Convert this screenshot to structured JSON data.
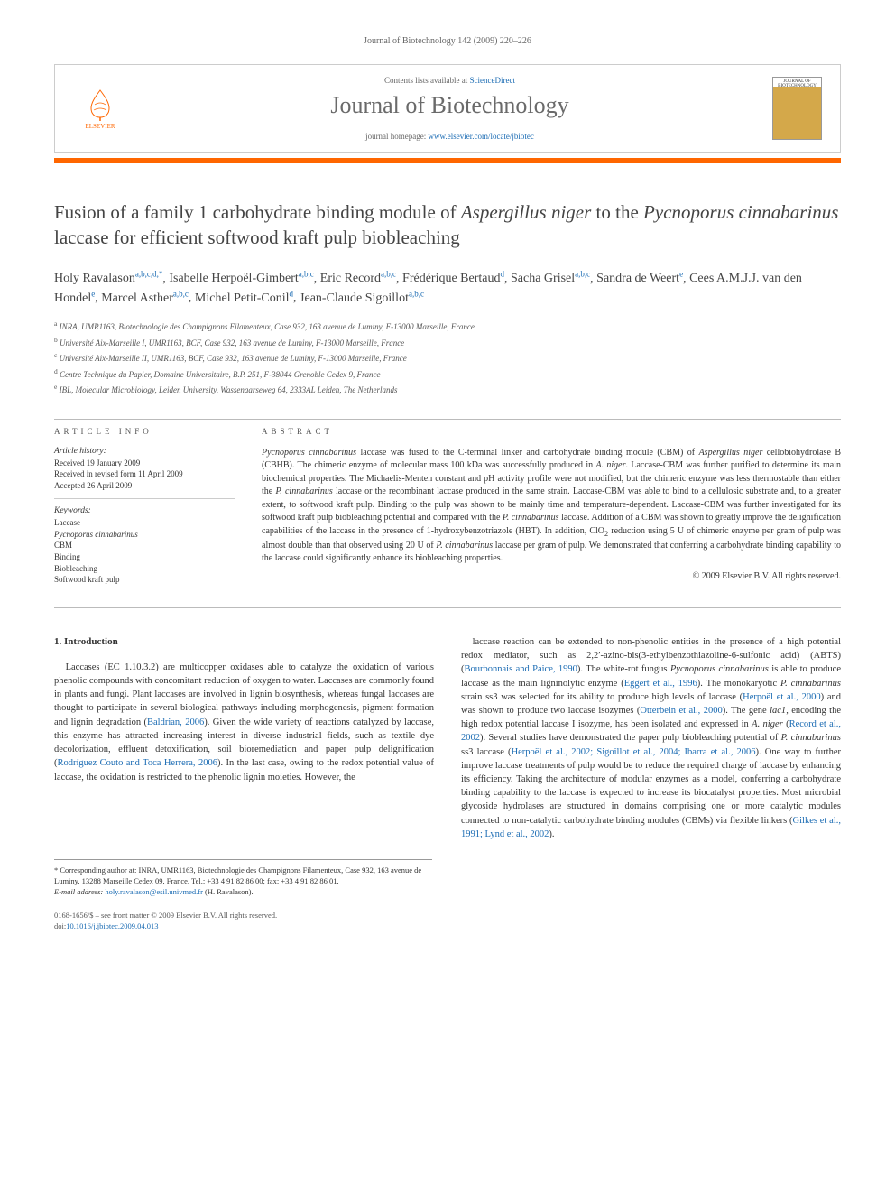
{
  "running_head": "Journal of Biotechnology 142 (2009) 220–226",
  "header": {
    "contents_prefix": "Contents lists available at ",
    "contents_link": "ScienceDirect",
    "journal_name": "Journal of Biotechnology",
    "homepage_prefix": "journal homepage: ",
    "homepage_url": "www.elsevier.com/locate/jbiotec",
    "elsevier_label": "ELSEVIER",
    "cover_label": "JOURNAL OF BIOTECHNOLOGY"
  },
  "title_part1": "Fusion of a family 1 carbohydrate binding module of ",
  "title_italic1": "Aspergillus niger",
  "title_part2": " to the ",
  "title_italic2": "Pycnoporus cinnabarinus",
  "title_part3": " laccase for efficient softwood kraft pulp biobleaching",
  "authors": [
    {
      "name": "Holy Ravalason",
      "aff": "a,b,c,d,*"
    },
    {
      "name": "Isabelle Herpoël-Gimbert",
      "aff": "a,b,c"
    },
    {
      "name": "Eric Record",
      "aff": "a,b,c"
    },
    {
      "name": "Frédérique Bertaud",
      "aff": "d"
    },
    {
      "name": "Sacha Grisel",
      "aff": "a,b,c"
    },
    {
      "name": "Sandra de Weert",
      "aff": "e"
    },
    {
      "name": "Cees A.M.J.J. van den Hondel",
      "aff": "e"
    },
    {
      "name": "Marcel Asther",
      "aff": "a,b,c"
    },
    {
      "name": "Michel Petit-Conil",
      "aff": "d"
    },
    {
      "name": "Jean-Claude Sigoillot",
      "aff": "a,b,c"
    }
  ],
  "affiliations": [
    {
      "sup": "a",
      "text": "INRA, UMR1163, Biotechnologie des Champignons Filamenteux, Case 932, 163 avenue de Luminy, F-13000 Marseille, France"
    },
    {
      "sup": "b",
      "text": "Université Aix-Marseille I, UMR1163, BCF, Case 932, 163 avenue de Luminy, F-13000 Marseille, France"
    },
    {
      "sup": "c",
      "text": "Université Aix-Marseille II, UMR1163, BCF, Case 932, 163 avenue de Luminy, F-13000 Marseille, France"
    },
    {
      "sup": "d",
      "text": "Centre Technique du Papier, Domaine Universitaire, B.P. 251, F-38044 Grenoble Cedex 9, France"
    },
    {
      "sup": "e",
      "text": "IBL, Molecular Microbiology, Leiden University, Wassenaarseweg 64, 2333AL Leiden, The Netherlands"
    }
  ],
  "info": {
    "heading": "ARTICLE INFO",
    "history_label": "Article history:",
    "received": "Received 19 January 2009",
    "revised": "Received in revised form 11 April 2009",
    "accepted": "Accepted 26 April 2009",
    "keywords_label": "Keywords:",
    "keywords": [
      "Laccase",
      "Pycnoporus cinnabarinus",
      "CBM",
      "Binding",
      "Biobleaching",
      "Softwood kraft pulp"
    ]
  },
  "abstract": {
    "heading": "ABSTRACT",
    "text_html": "<span class=\"italic\">Pycnoporus cinnabarinus</span> laccase was fused to the C-terminal linker and carbohydrate binding module (CBM) of <span class=\"italic\">Aspergillus niger</span> cellobiohydrolase B (CBHB). The chimeric enzyme of molecular mass 100 kDa was successfully produced in <span class=\"italic\">A. niger</span>. Laccase-CBM was further purified to determine its main biochemical properties. The Michaelis-Menten constant and pH activity profile were not modified, but the chimeric enzyme was less thermostable than either the <span class=\"italic\">P. cinnabarinus</span> laccase or the recombinant laccase produced in the same strain. Laccase-CBM was able to bind to a cellulosic substrate and, to a greater extent, to softwood kraft pulp. Binding to the pulp was shown to be mainly time and temperature-dependent. Laccase-CBM was further investigated for its softwood kraft pulp biobleaching potential and compared with the <span class=\"italic\">P. cinnabarinus</span> laccase. Addition of a CBM was shown to greatly improve the delignification capabilities of the laccase in the presence of 1-hydroxybenzotriazole (HBT). In addition, ClO<sub>2</sub> reduction using 5 U of chimeric enzyme per gram of pulp was almost double than that observed using 20 U of <span class=\"italic\">P. cinnabarinus</span> laccase per gram of pulp. We demonstrated that conferring a carbohydrate binding capability to the laccase could significantly enhance its biobleaching properties.",
    "copyright": "© 2009 Elsevier B.V. All rights reserved."
  },
  "intro": {
    "heading": "1. Introduction",
    "col1_html": "Laccases (EC 1.10.3.2) are multicopper oxidases able to catalyze the oxidation of various phenolic compounds with concomitant reduction of oxygen to water. Laccases are commonly found in plants and fungi. Plant laccases are involved in lignin biosynthesis, whereas fungal laccases are thought to participate in several biological pathways including morphogenesis, pigment formation and lignin degradation (<span class=\"citation\">Baldrian, 2006</span>). Given the wide variety of reactions catalyzed by laccase, this enzyme has attracted increasing interest in diverse industrial fields, such as textile dye decolorization, effluent detoxification, soil bioremediation and paper pulp delignification (<span class=\"citation\">Rodríguez Couto and Toca Herrera, 2006</span>). In the last case, owing to the redox potential value of laccase, the oxidation is restricted to the phenolic lignin moieties. However, the",
    "col2_html": "laccase reaction can be extended to non-phenolic entities in the presence of a high potential redox mediator, such as 2,2′-azino-bis(3-ethylbenzothiazoline-6-sulfonic acid) (ABTS) (<span class=\"citation\">Bourbonnais and Paice, 1990</span>). The white-rot fungus <span class=\"italic\">Pycnoporus cinnabarinus</span> is able to produce laccase as the main ligninolytic enzyme (<span class=\"citation\">Eggert et al., 1996</span>). The monokaryotic <span class=\"italic\">P. cinnabarinus</span> strain ss3 was selected for its ability to produce high levels of laccase (<span class=\"citation\">Herpoël et al., 2000</span>) and was shown to produce two laccase isozymes (<span class=\"citation\">Otterbein et al., 2000</span>). The gene <span class=\"italic\">lac1</span>, encoding the high redox potential laccase I isozyme, has been isolated and expressed in <span class=\"italic\">A. niger</span> (<span class=\"citation\">Record et al., 2002</span>). Several studies have demonstrated the paper pulp biobleaching potential of <span class=\"italic\">P. cinnabarinus</span> ss3 laccase (<span class=\"citation\">Herpoël et al., 2002; Sigoillot et al., 2004; Ibarra et al., 2006</span>). One way to further improve laccase treatments of pulp would be to reduce the required charge of laccase by enhancing its efficiency. Taking the architecture of modular enzymes as a model, conferring a carbohydrate binding capability to the laccase is expected to increase its biocatalyst properties. Most microbial glycoside hydrolases are structured in domains comprising one or more catalytic modules connected to non-catalytic carbohydrate binding modules (CBMs) via flexible linkers (<span class=\"citation\">Gilkes et al., 1991; Lynd et al., 2002</span>)."
  },
  "footnote": {
    "corresponding_label": "* Corresponding author at: ",
    "corresponding_text": "INRA, UMR1163, Biotechnologie des Champignons Filamenteux, Case 932, 163 avenue de Luminy, 13288 Marseille Cedex 09, France. Tel.: +33 4 91 82 86 00; fax: +33 4 91 82 86 01.",
    "email_label": "E-mail address: ",
    "email": "holy.ravalason@esil.univmed.fr",
    "email_suffix": " (H. Ravalason)."
  },
  "footer": {
    "issn_line": "0168-1656/$ – see front matter © 2009 Elsevier B.V. All rights reserved.",
    "doi_prefix": "doi:",
    "doi": "10.1016/j.jbiotec.2009.04.013"
  },
  "colors": {
    "link": "#1a6bb3",
    "orange": "#ff6600",
    "text": "#333333",
    "muted": "#666666"
  }
}
